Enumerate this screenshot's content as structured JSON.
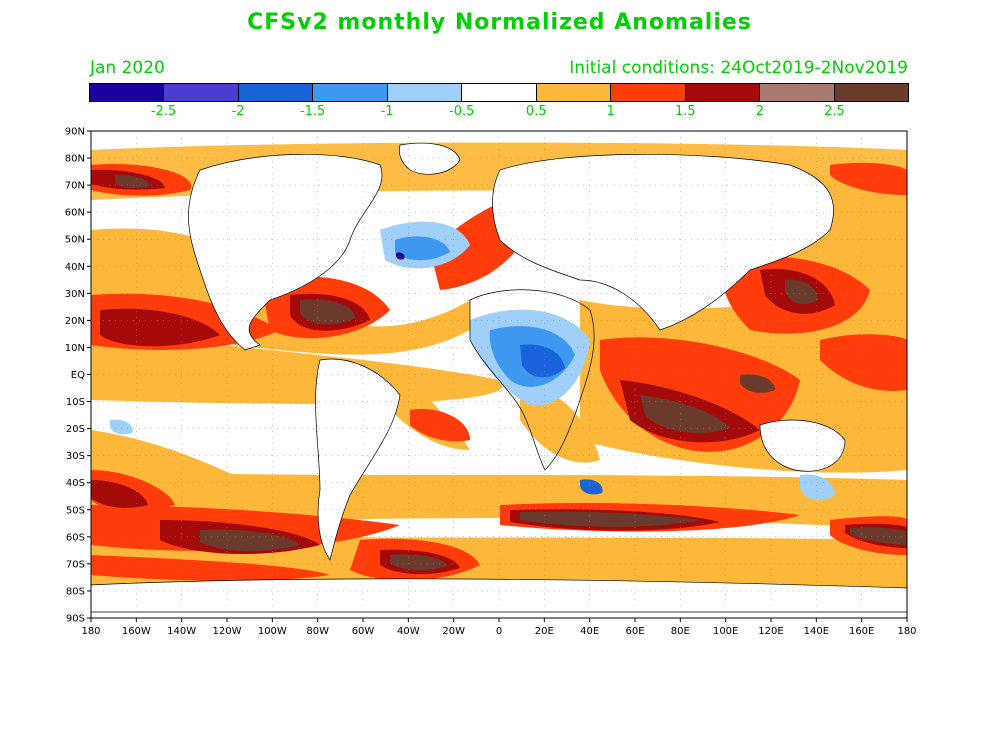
{
  "header": {
    "title": "CFSv2 monthly Normalized Anomalies",
    "valid_month": "Jan 2020",
    "initial_conditions": "Initial conditions: 24Oct2019-2Nov2019"
  },
  "legend": {
    "colors": [
      "#1e00a0",
      "#4b3cd2",
      "#1a62d9",
      "#3e98f0",
      "#a0d0fa",
      "#ffffff",
      "#fdb83c",
      "#ff3c0a",
      "#a50a0a",
      "#a87a70",
      "#6a3a2c"
    ],
    "labels": [
      "-2.5",
      "-2",
      "-1.5",
      "-1",
      "-0.5",
      "0.5",
      "1",
      "1.5",
      "2",
      "2.5"
    ]
  },
  "axes": {
    "lat_labels": [
      "90N",
      "80N",
      "70N",
      "60N",
      "50N",
      "40N",
      "30N",
      "20N",
      "10N",
      "EQ",
      "10S",
      "20S",
      "30S",
      "40S",
      "50S",
      "60S",
      "70S",
      "80S",
      "90S"
    ],
    "lon_labels": [
      "180",
      "160W",
      "140W",
      "120W",
      "100W",
      "80W",
      "60W",
      "40W",
      "20W",
      "0",
      "20E",
      "40E",
      "60E",
      "80E",
      "100E",
      "120E",
      "140E",
      "160E",
      "180"
    ]
  }
}
